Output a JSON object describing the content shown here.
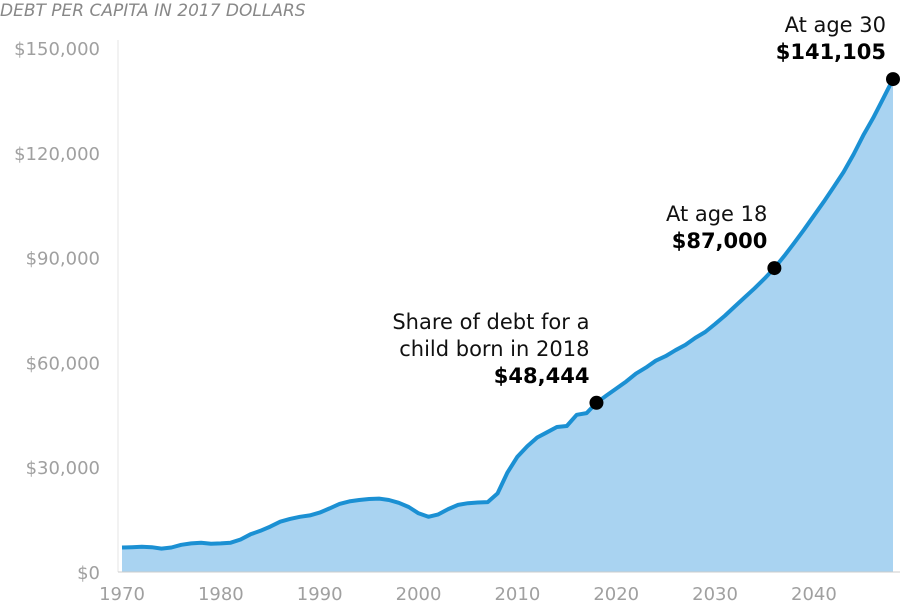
{
  "chart_data": {
    "type": "area",
    "title": "DEBT PER CAPITA IN 2017 DOLLARS",
    "x": [
      1970,
      1971,
      1972,
      1973,
      1974,
      1975,
      1976,
      1977,
      1978,
      1979,
      1980,
      1981,
      1982,
      1983,
      1984,
      1985,
      1986,
      1987,
      1988,
      1989,
      1990,
      1991,
      1992,
      1993,
      1994,
      1995,
      1996,
      1997,
      1998,
      1999,
      2000,
      2001,
      2002,
      2003,
      2004,
      2005,
      2006,
      2007,
      2008,
      2009,
      2010,
      2011,
      2012,
      2013,
      2014,
      2015,
      2016,
      2017,
      2018,
      2019,
      2020,
      2021,
      2022,
      2023,
      2024,
      2025,
      2026,
      2027,
      2028,
      2029,
      2030,
      2031,
      2032,
      2033,
      2034,
      2035,
      2036,
      2037,
      2038,
      2039,
      2040,
      2041,
      2042,
      2043,
      2044,
      2045,
      2046,
      2047,
      2048
    ],
    "values": [
      7000,
      7100,
      7200,
      7100,
      6700,
      7000,
      7800,
      8200,
      8400,
      8100,
      8200,
      8400,
      9300,
      10800,
      11800,
      13000,
      14400,
      15200,
      15800,
      16200,
      17000,
      18200,
      19500,
      20200,
      20600,
      20900,
      21000,
      20600,
      19800,
      18600,
      16800,
      15800,
      16500,
      18000,
      19200,
      19700,
      19900,
      20000,
      22500,
      28500,
      33000,
      36000,
      38500,
      40000,
      41500,
      41800,
      45000,
      45500,
      48444,
      50500,
      52500,
      54500,
      56800,
      58500,
      60500,
      61800,
      63500,
      65000,
      67000,
      68700,
      71000,
      73400,
      76000,
      78600,
      81200,
      84000,
      87000,
      90500,
      94200,
      98000,
      102000,
      106000,
      110200,
      114500,
      119500,
      125000,
      130000,
      135500,
      141105
    ],
    "color": "#1b90d3",
    "fill_color": "#a9d3f1",
    "xlim": [
      1970,
      2048
    ],
    "xticks": [
      1970,
      1980,
      1990,
      2000,
      2010,
      2020,
      2030,
      2040
    ],
    "ylim": [
      0,
      150000
    ],
    "yticks": [
      {
        "value": 0,
        "label": "$0"
      },
      {
        "value": 30000,
        "label": "$30,000"
      },
      {
        "value": 60000,
        "label": "$60,000"
      },
      {
        "value": 90000,
        "label": "$90,000"
      },
      {
        "value": 120000,
        "label": "$120,000"
      },
      {
        "value": 150000,
        "label": "$150,000"
      }
    ],
    "annotations": [
      {
        "text": [
          "Share of debt for a",
          "child born in 2018"
        ],
        "x": 2018,
        "y": 48444,
        "value_label": "$48,444"
      },
      {
        "text": [
          "At age 18"
        ],
        "x": 2036,
        "y": 87000,
        "value_label": "$87,000"
      },
      {
        "text": [
          "At age 30"
        ],
        "x": 2048,
        "y": 141105,
        "value_label": "$141,105"
      }
    ]
  }
}
